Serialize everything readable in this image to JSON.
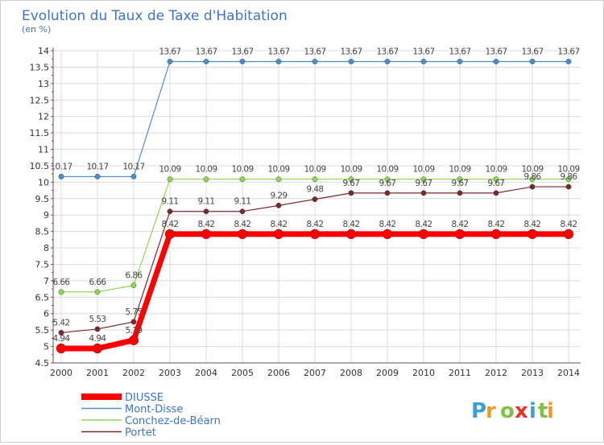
{
  "chart_data": {
    "type": "line",
    "title": "Evolution du Taux de Taxe d'Habitation",
    "subtitle": "(en %)",
    "xlabel": "",
    "ylabel": "",
    "ylim": [
      4.5,
      14
    ],
    "y_ticks": [
      "4.5",
      "5",
      "5.5",
      "6",
      "6.5",
      "7",
      "7.5",
      "8",
      "8.5",
      "9",
      "9.5",
      "10",
      "10.5",
      "11",
      "11.5",
      "12",
      "12.5",
      "13",
      "13.5",
      "14"
    ],
    "x": [
      "2000",
      "2001",
      "2002",
      "2003",
      "2004",
      "2005",
      "2006",
      "2007",
      "2008",
      "2009",
      "2010",
      "2011",
      "2012",
      "2013",
      "2014"
    ],
    "grid": true,
    "legend_position": "bottom-left",
    "series": [
      {
        "name": "Mont-Disse",
        "color": "#4a8fc9",
        "values": [
          10.17,
          10.17,
          10.17,
          13.67,
          13.67,
          13.67,
          13.67,
          13.67,
          13.67,
          13.67,
          13.67,
          13.67,
          13.67,
          13.67,
          13.67
        ],
        "labels": [
          "10.17",
          "10.17",
          "10.17",
          "13.67",
          "13.67",
          "13.67",
          "13.67",
          "13.67",
          "13.67",
          "13.67",
          "13.67",
          "13.67",
          "13.67",
          "13.67",
          "13.67"
        ]
      },
      {
        "name": "Conchez-de-Béarn",
        "color": "#8fd651",
        "values": [
          6.66,
          6.66,
          6.86,
          10.09,
          10.09,
          10.09,
          10.09,
          10.09,
          10.09,
          10.09,
          10.09,
          10.09,
          10.09,
          10.09,
          10.09
        ],
        "labels": [
          "6.66",
          "6.66",
          "6.86",
          "10.09",
          "10.09",
          "10.09",
          "10.09",
          "10.09",
          "10.09",
          "10.09",
          "10.09",
          "10.09",
          "10.09",
          "10.09",
          "10.09"
        ]
      },
      {
        "name": "Portet",
        "color": "#7a2a2e",
        "values": [
          5.42,
          5.53,
          5.75,
          9.11,
          9.11,
          9.11,
          9.29,
          9.48,
          9.67,
          9.67,
          9.67,
          9.67,
          9.67,
          9.86,
          9.86
        ],
        "labels": [
          "5.42",
          "5.53",
          "5.75",
          "9.11",
          "9.11",
          "9.11",
          "9.29",
          "9.48",
          "9.67",
          "9.67",
          "9.67",
          "9.67",
          "9.67",
          "9.86",
          "9.86"
        ]
      },
      {
        "name": "DIUSSE",
        "color": "#ff0000",
        "values": [
          4.94,
          4.94,
          5.19,
          8.42,
          8.42,
          8.42,
          8.42,
          8.42,
          8.42,
          8.42,
          8.42,
          8.42,
          8.42,
          8.42,
          8.42
        ],
        "labels": [
          "4.94",
          "4.94",
          "5.19",
          "8.42",
          "8.42",
          "8.42",
          "8.42",
          "8.42",
          "8.42",
          "8.42",
          "8.42",
          "8.42",
          "8.42",
          "8.42",
          "8.42"
        ]
      }
    ],
    "legend": [
      "DIUSSE",
      "Mont-Disse",
      "Conchez-de-Béarn",
      "Portet"
    ]
  },
  "brand": {
    "letters": [
      "P",
      "r",
      "o",
      "x",
      "i",
      "t",
      "i"
    ],
    "colors": [
      "#3aa0d8",
      "#f39a1c",
      "#7ec242",
      "#e8322a",
      "#3aa0d8",
      "#7ec242",
      "#f39a1c"
    ]
  }
}
